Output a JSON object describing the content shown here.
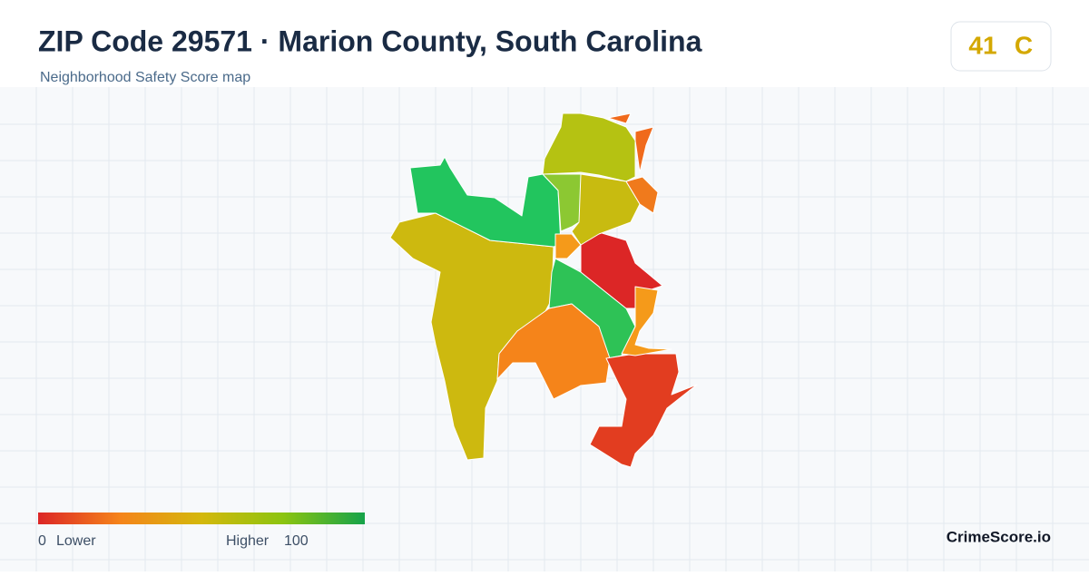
{
  "header": {
    "title": "ZIP Code 29571 · Marion County, South Carolina",
    "subtitle": "Neighborhood Safety Score map"
  },
  "score": {
    "value": 41,
    "grade": "C"
  },
  "legend": {
    "min": 0,
    "min_label": "Lower",
    "max_label": "Higher",
    "max": 100
  },
  "brand": "CrimeScore.io"
}
